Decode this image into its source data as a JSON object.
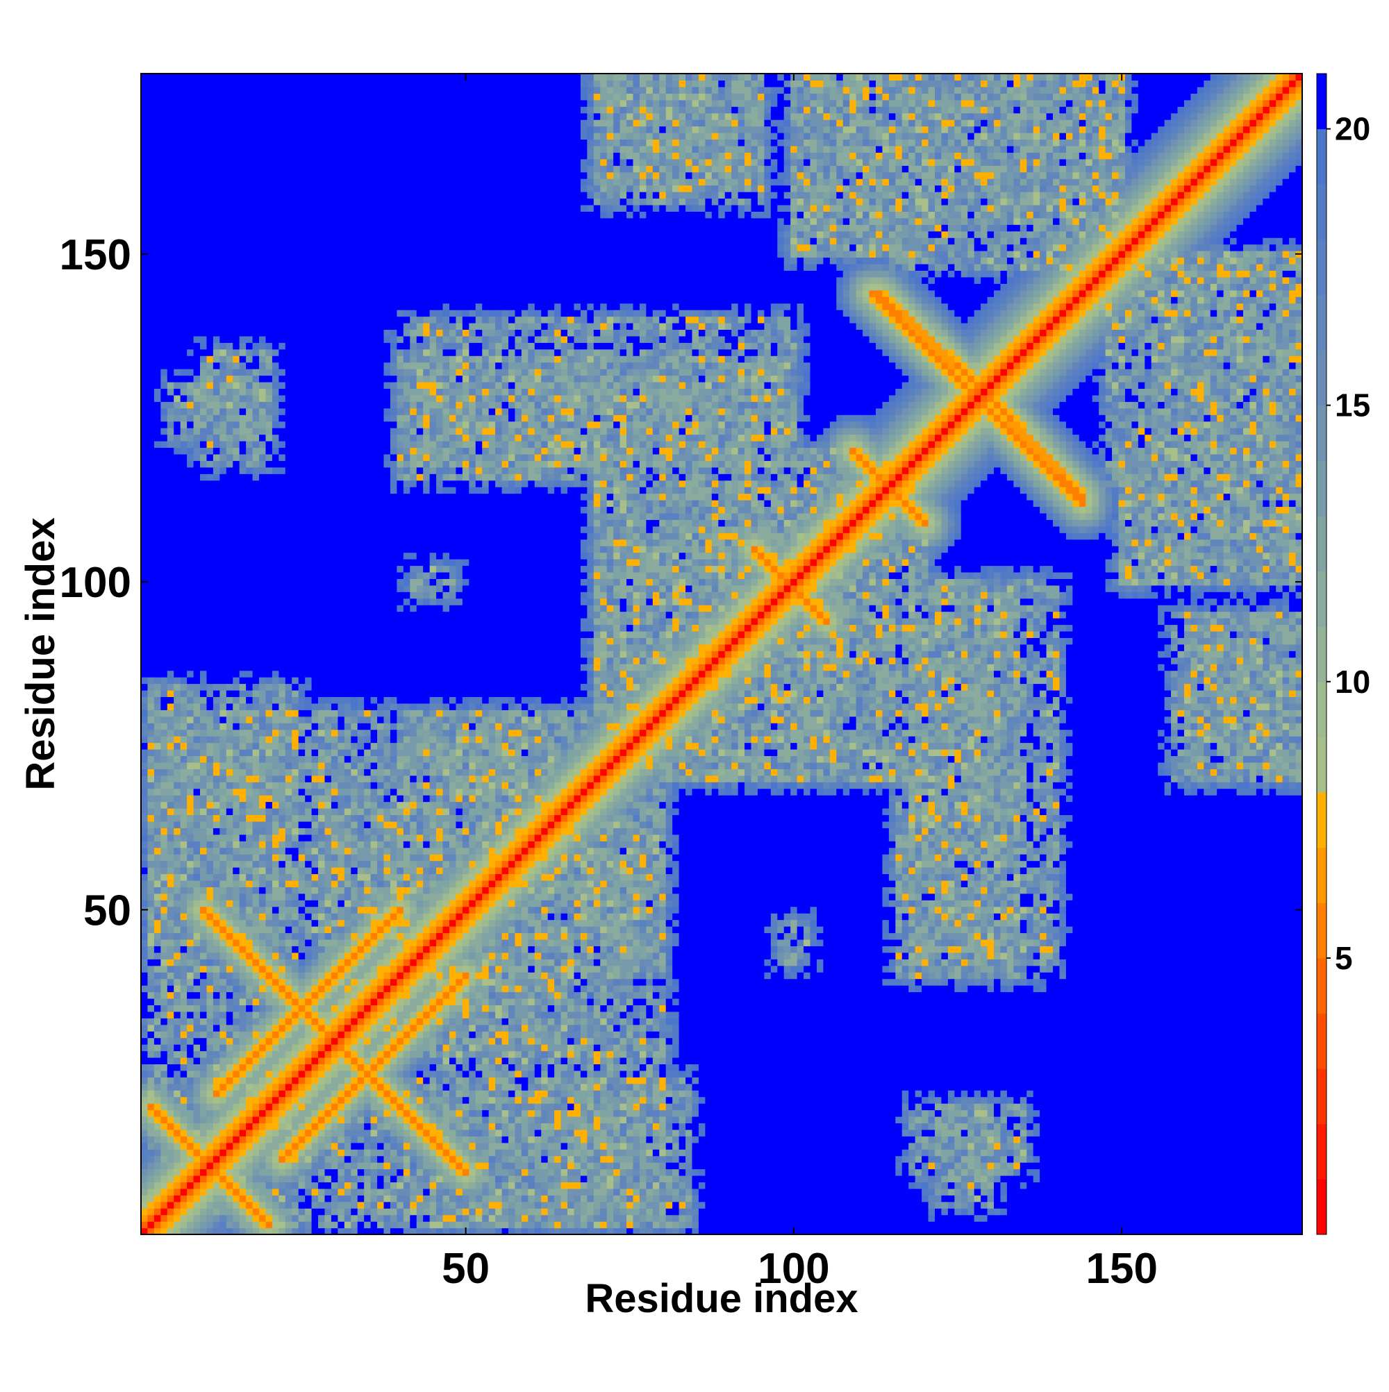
{
  "chart_data": {
    "type": "heatmap",
    "xlabel": "Residue index",
    "ylabel": "Residue index",
    "n_residues": 177,
    "xlim": [
      1,
      177
    ],
    "ylim": [
      1,
      177
    ],
    "x_ticks": [
      50,
      100,
      150
    ],
    "y_ticks": [
      50,
      100,
      150
    ],
    "colorbar": {
      "range": [
        0,
        21
      ],
      "ticks": [
        5,
        10,
        15,
        20
      ],
      "levels": [
        {
          "max": 1,
          "color": "#ff0000"
        },
        {
          "max": 2,
          "color": "#ff1a00"
        },
        {
          "max": 3,
          "color": "#ff3300"
        },
        {
          "max": 4,
          "color": "#ff4d00"
        },
        {
          "max": 5,
          "color": "#ff6600"
        },
        {
          "max": 6,
          "color": "#ff8000"
        },
        {
          "max": 7,
          "color": "#ff9900"
        },
        {
          "max": 8,
          "color": "#ffb000"
        },
        {
          "max": 9,
          "color": "#a8bf8a"
        },
        {
          "max": 10,
          "color": "#9eba8f"
        },
        {
          "max": 11,
          "color": "#94b396"
        },
        {
          "max": 12,
          "color": "#8aab9d"
        },
        {
          "max": 13,
          "color": "#80a3a4"
        },
        {
          "max": 14,
          "color": "#789bab"
        },
        {
          "max": 15,
          "color": "#7093b1"
        },
        {
          "max": 16,
          "color": "#688cb6"
        },
        {
          "max": 17,
          "color": "#6186bc"
        },
        {
          "max": 18,
          "color": "#5a80c1"
        },
        {
          "max": 19,
          "color": "#537bc6"
        },
        {
          "max": 20,
          "color": "#4c76cb"
        },
        {
          "max": 21,
          "color": "#0000ff"
        }
      ]
    },
    "structure": {
      "diagonal_width": 3,
      "sheet_pairs": [
        {
          "i": [
            10,
            30
          ],
          "j": [
            50,
            30
          ],
          "note": "antiparallel"
        },
        {
          "i": [
            2,
            13
          ],
          "j": [
            20,
            9
          ]
        },
        {
          "i": [
            12,
            40
          ],
          "j": [
            22,
            50
          ]
        },
        {
          "i": [
            109,
            119
          ],
          "j": [
            120,
            110
          ]
        },
        {
          "i": [
            94,
            104
          ],
          "j": [
            105,
            95
          ]
        },
        {
          "i": [
            112,
            129
          ],
          "j": [
            144,
            127
          ]
        },
        {
          "i": [
            130,
            144
          ],
          "j": [
            128,
            113
          ]
        }
      ],
      "contact_blobs": [
        {
          "x": [
            2,
            24
          ],
          "y": [
            12,
            84
          ]
        },
        {
          "x": [
            28,
            65
          ],
          "y": [
            30,
            80
          ]
        },
        {
          "x": [
            45,
            80
          ],
          "y": [
            2,
            30
          ]
        },
        {
          "x": [
            38,
            80
          ],
          "y": [
            40,
            72
          ]
        },
        {
          "x": [
            5,
            20
          ],
          "y": [
            122,
            130
          ]
        },
        {
          "x": [
            40,
            100
          ],
          "y": [
            116,
            134
          ]
        },
        {
          "x": [
            70,
            95
          ],
          "y": [
            158,
            177
          ]
        },
        {
          "x": [
            100,
            115
          ],
          "y": [
            150,
            177
          ]
        },
        {
          "x": [
            115,
            150
          ],
          "y": [
            148,
            177
          ]
        },
        {
          "x": [
            155,
            177
          ],
          "y": [
            120,
            150
          ]
        },
        {
          "x": [
            150,
            177
          ],
          "y": [
            100,
            120
          ]
        },
        {
          "x": [
            160,
            177
          ],
          "y": [
            70,
            95
          ]
        },
        {
          "x": [
            118,
            140
          ],
          "y": [
            40,
            100
          ]
        },
        {
          "x": [
            70,
            115
          ],
          "y": [
            70,
            120
          ]
        },
        {
          "x": [
            118,
            135
          ],
          "y": [
            10,
            20
          ]
        },
        {
          "x": [
            98,
            102
          ],
          "y": [
            42,
            48
          ]
        }
      ]
    }
  }
}
